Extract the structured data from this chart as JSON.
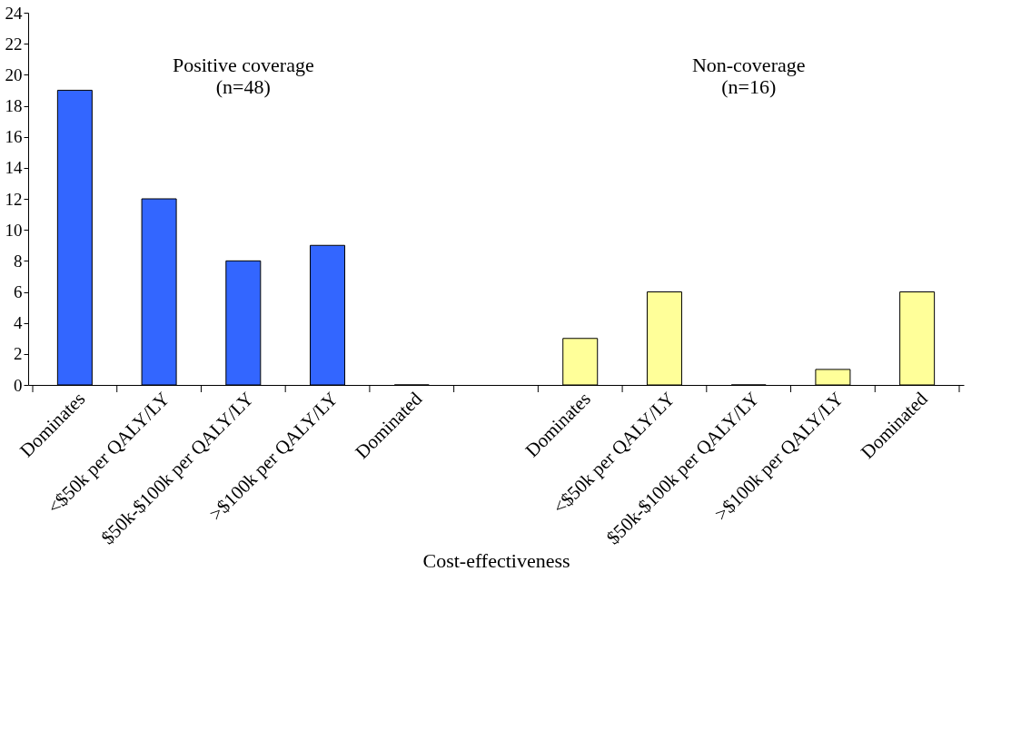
{
  "chart_data": {
    "type": "bar",
    "xlabel": "Cost-effectiveness",
    "categories": [
      "Dominates",
      "<$50k per QALY/LY",
      "$50k-$100k per QALY/LY",
      ">$100k per QALY/LY",
      "Dominated",
      null,
      "Dominates",
      "<$50k per QALY/LY",
      "$50k-$100k per QALY/LY",
      ">$100k per QALY/LY",
      "Dominated"
    ],
    "series": [
      {
        "color": "#3366ff",
        "values": [
          19,
          12,
          8,
          9,
          0,
          null,
          null,
          null,
          null,
          null,
          null
        ]
      },
      {
        "color": "#ffff99",
        "values": [
          null,
          null,
          null,
          null,
          null,
          null,
          3,
          6,
          0,
          1,
          6
        ]
      }
    ],
    "annotations": [
      "Positive coverage\n(n=48)",
      "Non-coverage\n(n=16)"
    ],
    "ylim": [
      0,
      24
    ],
    "yticks": [
      0,
      2,
      4,
      6,
      8,
      10,
      12,
      14,
      16,
      18,
      20,
      22,
      24
    ],
    "grid": false,
    "legend": false
  }
}
